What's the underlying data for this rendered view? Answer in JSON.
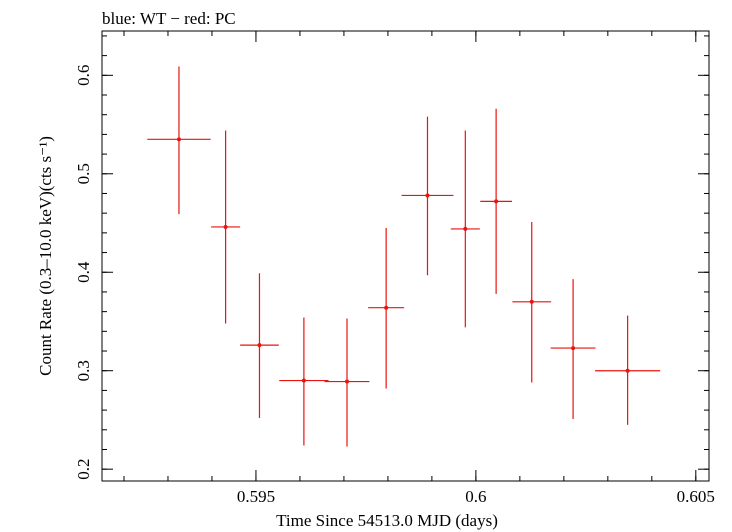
{
  "chart_data": {
    "type": "scatter",
    "title": "blue: WT − red: PC",
    "xlabel": "Time Since 54513.0 MJD (days)",
    "ylabel": "Count Rate (0.3–10.0 keV)(cts s⁻¹)",
    "xlim": [
      0.5915,
      0.6053
    ],
    "ylim": [
      0.188,
      0.645
    ],
    "x_ticks": [
      {
        "value": 0.595,
        "label": "0.595"
      },
      {
        "value": 0.6,
        "label": "0.6"
      },
      {
        "value": 0.605,
        "label": "0.605"
      }
    ],
    "y_ticks": [
      {
        "value": 0.2,
        "label": "0.2"
      },
      {
        "value": 0.3,
        "label": "0.3"
      },
      {
        "value": 0.4,
        "label": "0.4"
      },
      {
        "value": 0.5,
        "label": "0.5"
      },
      {
        "value": 0.6,
        "label": "0.6"
      }
    ],
    "x_minor_step": 0.001,
    "y_minor_step": 0.02,
    "grid": false,
    "legend": "none",
    "series": [
      {
        "color": "#e8140f",
        "points": [
          {
            "x": 0.59325,
            "xerr": 0.00072,
            "y": 0.535,
            "yerr_lo": 0.076,
            "yerr_hi": 0.074
          },
          {
            "x": 0.59431,
            "xerr": 0.00033,
            "y": 0.446,
            "yerr_lo": 0.098,
            "yerr_hi": 0.098
          },
          {
            "x": 0.59508,
            "xerr": 0.00044,
            "y": 0.326,
            "yerr_lo": 0.074,
            "yerr_hi": 0.073
          },
          {
            "x": 0.59609,
            "xerr": 0.00056,
            "y": 0.29,
            "yerr_lo": 0.066,
            "yerr_hi": 0.064
          },
          {
            "x": 0.59707,
            "xerr": 0.00051,
            "y": 0.289,
            "yerr_lo": 0.066,
            "yerr_hi": 0.064
          },
          {
            "x": 0.59796,
            "xerr": 0.00041,
            "y": 0.364,
            "yerr_lo": 0.082,
            "yerr_hi": 0.081
          },
          {
            "x": 0.5989,
            "xerr": 0.00059,
            "y": 0.478,
            "yerr_lo": 0.081,
            "yerr_hi": 0.08
          },
          {
            "x": 0.59976,
            "xerr": 0.00033,
            "y": 0.444,
            "yerr_lo": 0.1,
            "yerr_hi": 0.1
          },
          {
            "x": 0.60046,
            "xerr": 0.00036,
            "y": 0.472,
            "yerr_lo": 0.094,
            "yerr_hi": 0.094
          },
          {
            "x": 0.60127,
            "xerr": 0.00044,
            "y": 0.37,
            "yerr_lo": 0.082,
            "yerr_hi": 0.081
          },
          {
            "x": 0.60221,
            "xerr": 0.00051,
            "y": 0.323,
            "yerr_lo": 0.072,
            "yerr_hi": 0.07
          },
          {
            "x": 0.60345,
            "xerr": 0.00074,
            "y": 0.3,
            "yerr_lo": 0.055,
            "yerr_hi": 0.056
          }
        ]
      }
    ]
  }
}
